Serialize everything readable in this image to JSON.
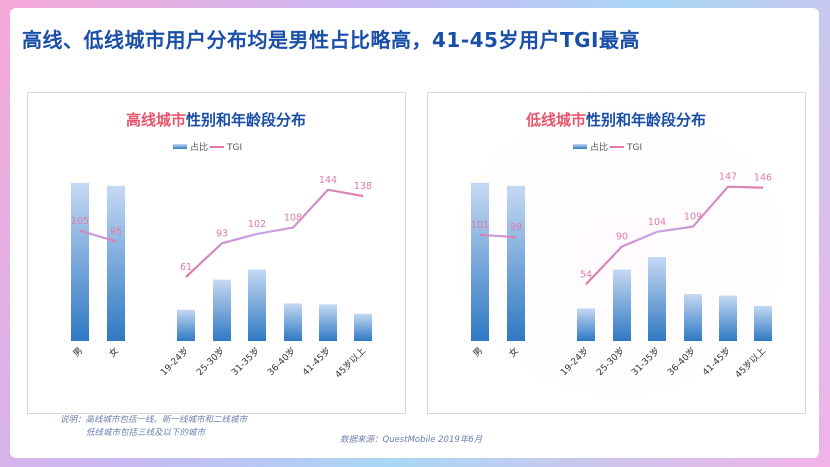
{
  "headline": "高线、低线城市用户分布均是男性占比略高，41-45岁用户TGI最高",
  "colors": {
    "bar_top": "#c5d9f3",
    "bar_bottom": "#2f79c3",
    "tgi_line_start": "#e07aa8",
    "tgi_line_mid": "#c4a5e8",
    "tgi_line_end": "#e07aa8",
    "title_highlight": "#e8556d",
    "title_rest": "#1a4fa8",
    "value_label": "#e07aa8"
  },
  "legend": {
    "bar": "占比",
    "line": "TGI"
  },
  "note": {
    "line1": "说明：高线城市包括一线、新一线城市和二线城市",
    "line2": "低线城市包括三线及以下的城市"
  },
  "source": "数据来源：QuestMobile 2019年6月",
  "chart_data": [
    {
      "type": "bar",
      "title_highlight": "高线城市",
      "title_rest": "性别和年龄段分布",
      "categories": [
        "男",
        "女",
        "19-24岁",
        "25-30岁",
        "31-35岁",
        "36-40岁",
        "41-45岁",
        "45岁以上"
      ],
      "series": [
        {
          "name": "占比",
          "type": "bar",
          "values": [
            0.505,
            0.495,
            0.1,
            0.196,
            0.228,
            0.12,
            0.117,
            0.087
          ]
        },
        {
          "name": "TGI",
          "type": "line",
          "values": [
            105,
            95,
            61,
            93,
            102,
            108,
            144,
            138
          ],
          "segments": [
            [
              0,
              1
            ],
            [
              2,
              7
            ]
          ]
        }
      ],
      "legend_position": "top-left",
      "grid": false
    },
    {
      "type": "bar",
      "title_highlight": "低线城市",
      "title_rest": "性别和年龄段分布",
      "categories": [
        "男",
        "女",
        "19-24岁",
        "25-30岁",
        "31-35岁",
        "36-40岁",
        "41-45岁",
        "45岁以上"
      ],
      "series": [
        {
          "name": "占比",
          "type": "bar",
          "values": [
            0.505,
            0.495,
            0.104,
            0.228,
            0.268,
            0.15,
            0.145,
            0.112
          ]
        },
        {
          "name": "TGI",
          "type": "line",
          "values": [
            101,
            99,
            54,
            90,
            104,
            109,
            147,
            146
          ],
          "segments": [
            [
              0,
              1
            ],
            [
              2,
              7
            ]
          ]
        }
      ],
      "legend_position": "top-left",
      "grid": false
    }
  ]
}
